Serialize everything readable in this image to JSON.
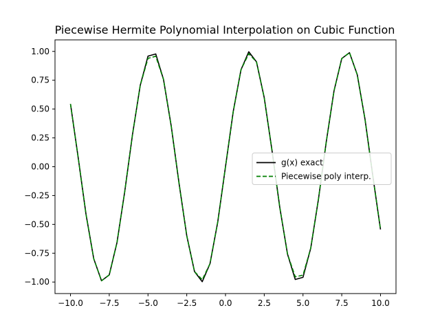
{
  "chart_data": {
    "type": "line",
    "title": "Piecewise Hermite Polynomial Interpolation on Cubic Function",
    "xlabel": "",
    "ylabel": "",
    "xlim": [
      -10.0,
      10.0
    ],
    "ylim": [
      -1.0,
      1.0
    ],
    "xticks": [
      -10.0,
      -7.5,
      -5.0,
      -2.5,
      0.0,
      2.5,
      5.0,
      7.5,
      10.0
    ],
    "xtick_labels": [
      "−10.0",
      "−7.5",
      "−5.0",
      "−2.5",
      "0.0",
      "2.5",
      "5.0",
      "7.5",
      "10.0"
    ],
    "yticks": [
      -1.0,
      -0.75,
      -0.5,
      -0.25,
      0.0,
      0.25,
      0.5,
      0.75,
      1.0
    ],
    "ytick_labels": [
      "−1.00",
      "−0.75",
      "−0.50",
      "−0.25",
      "0.00",
      "0.25",
      "0.50",
      "0.75",
      "1.00"
    ],
    "grid": false,
    "legend_position": "center-right",
    "series": [
      {
        "name": "g(x) exact",
        "color": "#000000",
        "style": "solid",
        "x": [
          -10.0,
          -9.5,
          -9.0,
          -8.5,
          -8.0,
          -7.5,
          -7.0,
          -6.5,
          -6.0,
          -5.5,
          -5.0,
          -4.5,
          -4.0,
          -3.5,
          -3.0,
          -2.5,
          -2.0,
          -1.5,
          -1.0,
          -0.5,
          0.0,
          0.5,
          1.0,
          1.5,
          2.0,
          2.5,
          3.0,
          3.5,
          4.0,
          4.5,
          5.0,
          5.5,
          6.0,
          6.5,
          7.0,
          7.5,
          8.0,
          8.5,
          9.0,
          9.5,
          10.0
        ],
        "y": [
          0.544,
          0.075,
          -0.412,
          -0.798,
          -0.989,
          -0.938,
          -0.657,
          -0.215,
          0.279,
          0.706,
          0.959,
          0.978,
          0.757,
          0.351,
          -0.141,
          -0.598,
          -0.909,
          -0.997,
          -0.841,
          -0.479,
          0.0,
          0.479,
          0.841,
          0.997,
          0.909,
          0.598,
          0.141,
          -0.351,
          -0.757,
          -0.978,
          -0.959,
          -0.706,
          -0.279,
          0.215,
          0.657,
          0.938,
          0.989,
          0.798,
          0.412,
          -0.075,
          -0.544
        ]
      },
      {
        "name": "Piecewise poly interp.",
        "color": "#008000",
        "style": "dashed",
        "x": [
          -10.0,
          -9.5,
          -9.0,
          -8.5,
          -8.0,
          -7.5,
          -7.0,
          -6.5,
          -6.0,
          -5.5,
          -5.0,
          -4.5,
          -4.0,
          -3.5,
          -3.0,
          -2.5,
          -2.0,
          -1.5,
          -1.0,
          -0.5,
          0.0,
          0.5,
          1.0,
          1.5,
          2.0,
          2.5,
          3.0,
          3.5,
          4.0,
          4.5,
          5.0,
          5.5,
          6.0,
          6.5,
          7.0,
          7.5,
          8.0,
          8.5,
          9.0,
          9.5,
          10.0
        ],
        "y": [
          0.544,
          0.075,
          -0.412,
          -0.798,
          -0.989,
          -0.938,
          -0.657,
          -0.215,
          0.279,
          0.706,
          0.94,
          0.958,
          0.757,
          0.351,
          -0.141,
          -0.598,
          -0.909,
          -0.98,
          -0.841,
          -0.479,
          0.0,
          0.479,
          0.841,
          0.98,
          0.909,
          0.598,
          0.141,
          -0.351,
          -0.757,
          -0.955,
          -0.94,
          -0.706,
          -0.279,
          0.215,
          0.657,
          0.938,
          0.989,
          0.798,
          0.412,
          -0.075,
          -0.544
        ]
      }
    ]
  }
}
